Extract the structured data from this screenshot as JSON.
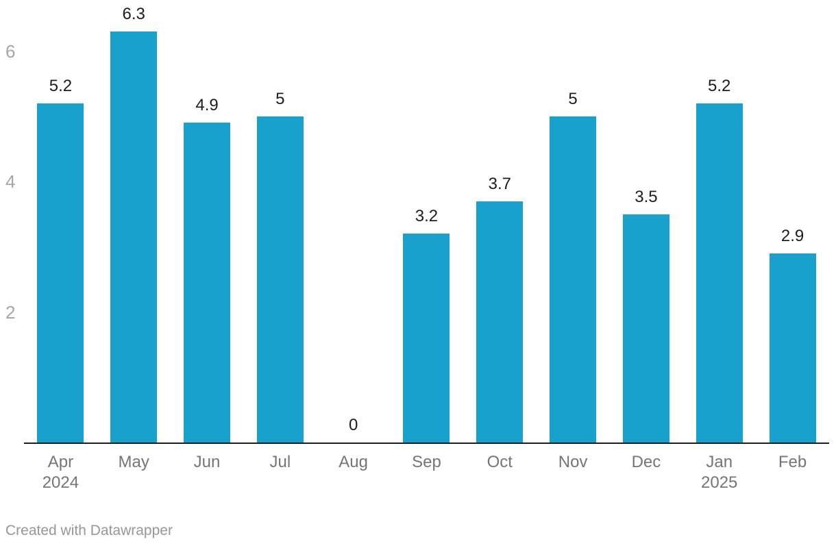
{
  "chart_data": {
    "type": "bar",
    "categories": [
      "Apr",
      "May",
      "Jun",
      "Jul",
      "Aug",
      "Sep",
      "Oct",
      "Nov",
      "Dec",
      "Jan",
      "Feb"
    ],
    "category_years": [
      "2024",
      "",
      "",
      "",
      "",
      "",
      "",
      "",
      "",
      "2025",
      ""
    ],
    "values": [
      5.2,
      6.3,
      4.9,
      5,
      0,
      3.2,
      3.7,
      5,
      3.5,
      5.2,
      2.9
    ],
    "value_labels": [
      "5.2",
      "6.3",
      "4.9",
      "5",
      "0",
      "3.2",
      "3.7",
      "5",
      "3.5",
      "5.2",
      "2.9"
    ],
    "title": "",
    "xlabel": "",
    "ylabel": "",
    "ylim": [
      0,
      6.3
    ],
    "yticks": [
      2,
      4,
      6
    ],
    "grid": false,
    "legend": false,
    "colors": {
      "bar": "#18a1cd",
      "value_label": "#1d1d1d",
      "y_tick_text": "#a6a6a6",
      "x_tick_text": "#757575",
      "baseline": "#1d1d1d"
    }
  },
  "footer": {
    "credit": "Created with Datawrapper"
  }
}
